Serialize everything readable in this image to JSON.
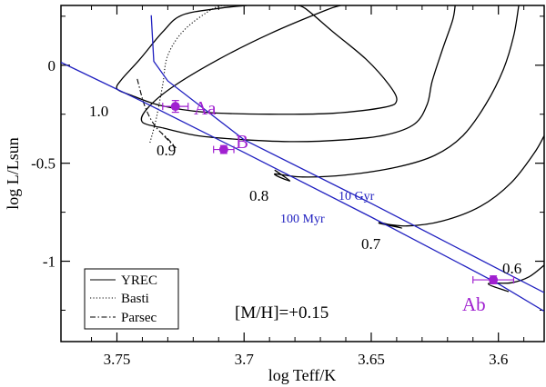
{
  "chart_data": {
    "type": "line",
    "title": "",
    "xlabel": "log Teff/K",
    "ylabel": "log L/Lsun",
    "xlim": [
      3.772,
      3.582
    ],
    "ylim": [
      -1.41,
      0.305
    ],
    "x_ticks": [
      3.75,
      3.7,
      3.65,
      3.6
    ],
    "x_tick_labels": [
      "3.75",
      "3.7",
      "3.65",
      "3.6"
    ],
    "y_ticks": [
      0,
      -0.5,
      -1
    ],
    "y_tick_labels": [
      "0",
      "-0.5",
      "-1"
    ],
    "annotation": "[M/H]=+0.15",
    "colors": {
      "isochrone": "#2020c0",
      "star": "#a020d0",
      "track": "#000000"
    },
    "legend": {
      "position": "bottom-left",
      "entries": [
        {
          "label": "YREC",
          "style": "solid"
        },
        {
          "label": "Basti",
          "style": "dotted"
        },
        {
          "label": "Parsec",
          "style": "dashdot"
        }
      ]
    },
    "stars": [
      {
        "name": "Aa",
        "teff": 3.727,
        "logL": -0.21,
        "teff_err": 0.005,
        "logL_err": 0.03
      },
      {
        "name": "B",
        "teff": 3.708,
        "logL": -0.43,
        "teff_err": 0.004,
        "logL_err": 0.02
      },
      {
        "name": "Ab",
        "teff": 3.602,
        "logL": -1.095,
        "teff_err": 0.008,
        "logL_err": 0.02
      }
    ],
    "isochrones": [
      {
        "name": "100 Myr",
        "points": [
          [
            3.772,
            0.015
          ],
          [
            3.74,
            -0.185
          ],
          [
            3.7,
            -0.445
          ],
          [
            3.65,
            -0.775
          ],
          [
            3.6,
            -1.115
          ],
          [
            3.582,
            -1.255
          ]
        ]
      },
      {
        "name": "10 Gyr",
        "points": [
          [
            3.7365,
            0.255
          ],
          [
            3.7355,
            0.02
          ],
          [
            3.73,
            -0.08
          ],
          [
            3.7,
            -0.38
          ],
          [
            3.65,
            -0.705
          ],
          [
            3.6,
            -1.04
          ],
          [
            3.582,
            -1.16
          ]
        ]
      }
    ],
    "mass_labels": [
      "1.0",
      "0.9",
      "0.8",
      "0.7",
      "0.6"
    ],
    "tracks": [
      {
        "mass": "1.0",
        "style": "solid",
        "points": [
          [
            3.745,
            -0.15
          ],
          [
            3.75,
            -0.12
          ],
          [
            3.748,
            -0.07
          ],
          [
            3.741,
            0.03
          ],
          [
            3.732,
            0.17
          ],
          [
            3.7245,
            0.255
          ],
          [
            3.71,
            0.29
          ],
          [
            3.699,
            0.305
          ]
        ]
      },
      {
        "mass": "1.0",
        "style": "solid",
        "points": [
          [
            3.745,
            -0.15
          ],
          [
            3.733,
            -0.205
          ],
          [
            3.715,
            -0.24
          ],
          [
            3.69,
            -0.25
          ],
          [
            3.665,
            -0.245
          ],
          [
            3.645,
            -0.215
          ],
          [
            3.64,
            -0.18
          ],
          [
            3.643,
            -0.1
          ],
          [
            3.652,
            0.03
          ],
          [
            3.665,
            0.17
          ],
          [
            3.676,
            0.29
          ],
          [
            3.68,
            0.305
          ]
        ]
      },
      {
        "mass": "0.9",
        "style": "solid",
        "points": [
          [
            3.732,
            -0.32
          ],
          [
            3.74,
            -0.29
          ],
          [
            3.738,
            -0.22
          ],
          [
            3.728,
            -0.11
          ],
          [
            3.71,
            0.03
          ],
          [
            3.69,
            0.16
          ],
          [
            3.668,
            0.28
          ],
          [
            3.662,
            0.305
          ]
        ]
      },
      {
        "mass": "0.9",
        "style": "solid",
        "points": [
          [
            3.732,
            -0.32
          ],
          [
            3.718,
            -0.36
          ],
          [
            3.7,
            -0.38
          ],
          [
            3.68,
            -0.39
          ],
          [
            3.66,
            -0.38
          ],
          [
            3.644,
            -0.355
          ],
          [
            3.633,
            -0.3
          ],
          [
            3.628,
            -0.2
          ],
          [
            3.626,
            -0.08
          ],
          [
            3.622,
            0.08
          ],
          [
            3.618,
            0.23
          ],
          [
            3.617,
            0.305
          ]
        ]
      },
      {
        "mass": "0.8",
        "style": "solid",
        "points": [
          [
            3.688,
            -0.535
          ],
          [
            3.682,
            -0.59
          ],
          [
            3.688,
            -0.555
          ],
          [
            3.677,
            -0.57
          ],
          [
            3.66,
            -0.56
          ],
          [
            3.64,
            -0.52
          ],
          [
            3.625,
            -0.46
          ],
          [
            3.614,
            -0.36
          ],
          [
            3.605,
            -0.2
          ],
          [
            3.598,
            -0.02
          ],
          [
            3.594,
            0.15
          ],
          [
            3.592,
            0.305
          ]
        ]
      },
      {
        "mass": "0.7",
        "style": "solid",
        "points": [
          [
            3.647,
            -0.8
          ],
          [
            3.638,
            -0.83
          ],
          [
            3.647,
            -0.805
          ],
          [
            3.636,
            -0.82
          ],
          [
            3.622,
            -0.795
          ],
          [
            3.607,
            -0.72
          ],
          [
            3.595,
            -0.6
          ],
          [
            3.586,
            -0.45
          ],
          [
            3.582,
            -0.36
          ]
        ]
      },
      {
        "mass": "0.6",
        "style": "solid",
        "points": [
          [
            3.596,
            -1.155
          ],
          [
            3.604,
            -1.115
          ],
          [
            3.595,
            -1.11
          ],
          [
            3.588,
            -1.08
          ],
          [
            3.582,
            -1.02
          ]
        ]
      },
      {
        "mass": "1.0",
        "style": "dotted",
        "points": [
          [
            3.737,
            -0.395
          ],
          [
            3.7345,
            -0.27
          ],
          [
            3.732,
            -0.1
          ],
          [
            3.73,
            0.05
          ],
          [
            3.7235,
            0.18
          ],
          [
            3.712,
            0.29
          ],
          [
            3.706,
            0.305
          ]
        ]
      },
      {
        "mass": "1.0",
        "style": "dashdot",
        "points": [
          [
            3.742,
            -0.07
          ],
          [
            3.739,
            -0.21
          ],
          [
            3.735,
            -0.31
          ],
          [
            3.73,
            -0.375
          ],
          [
            3.727,
            -0.42
          ],
          [
            3.733,
            -0.34
          ]
        ]
      }
    ]
  }
}
